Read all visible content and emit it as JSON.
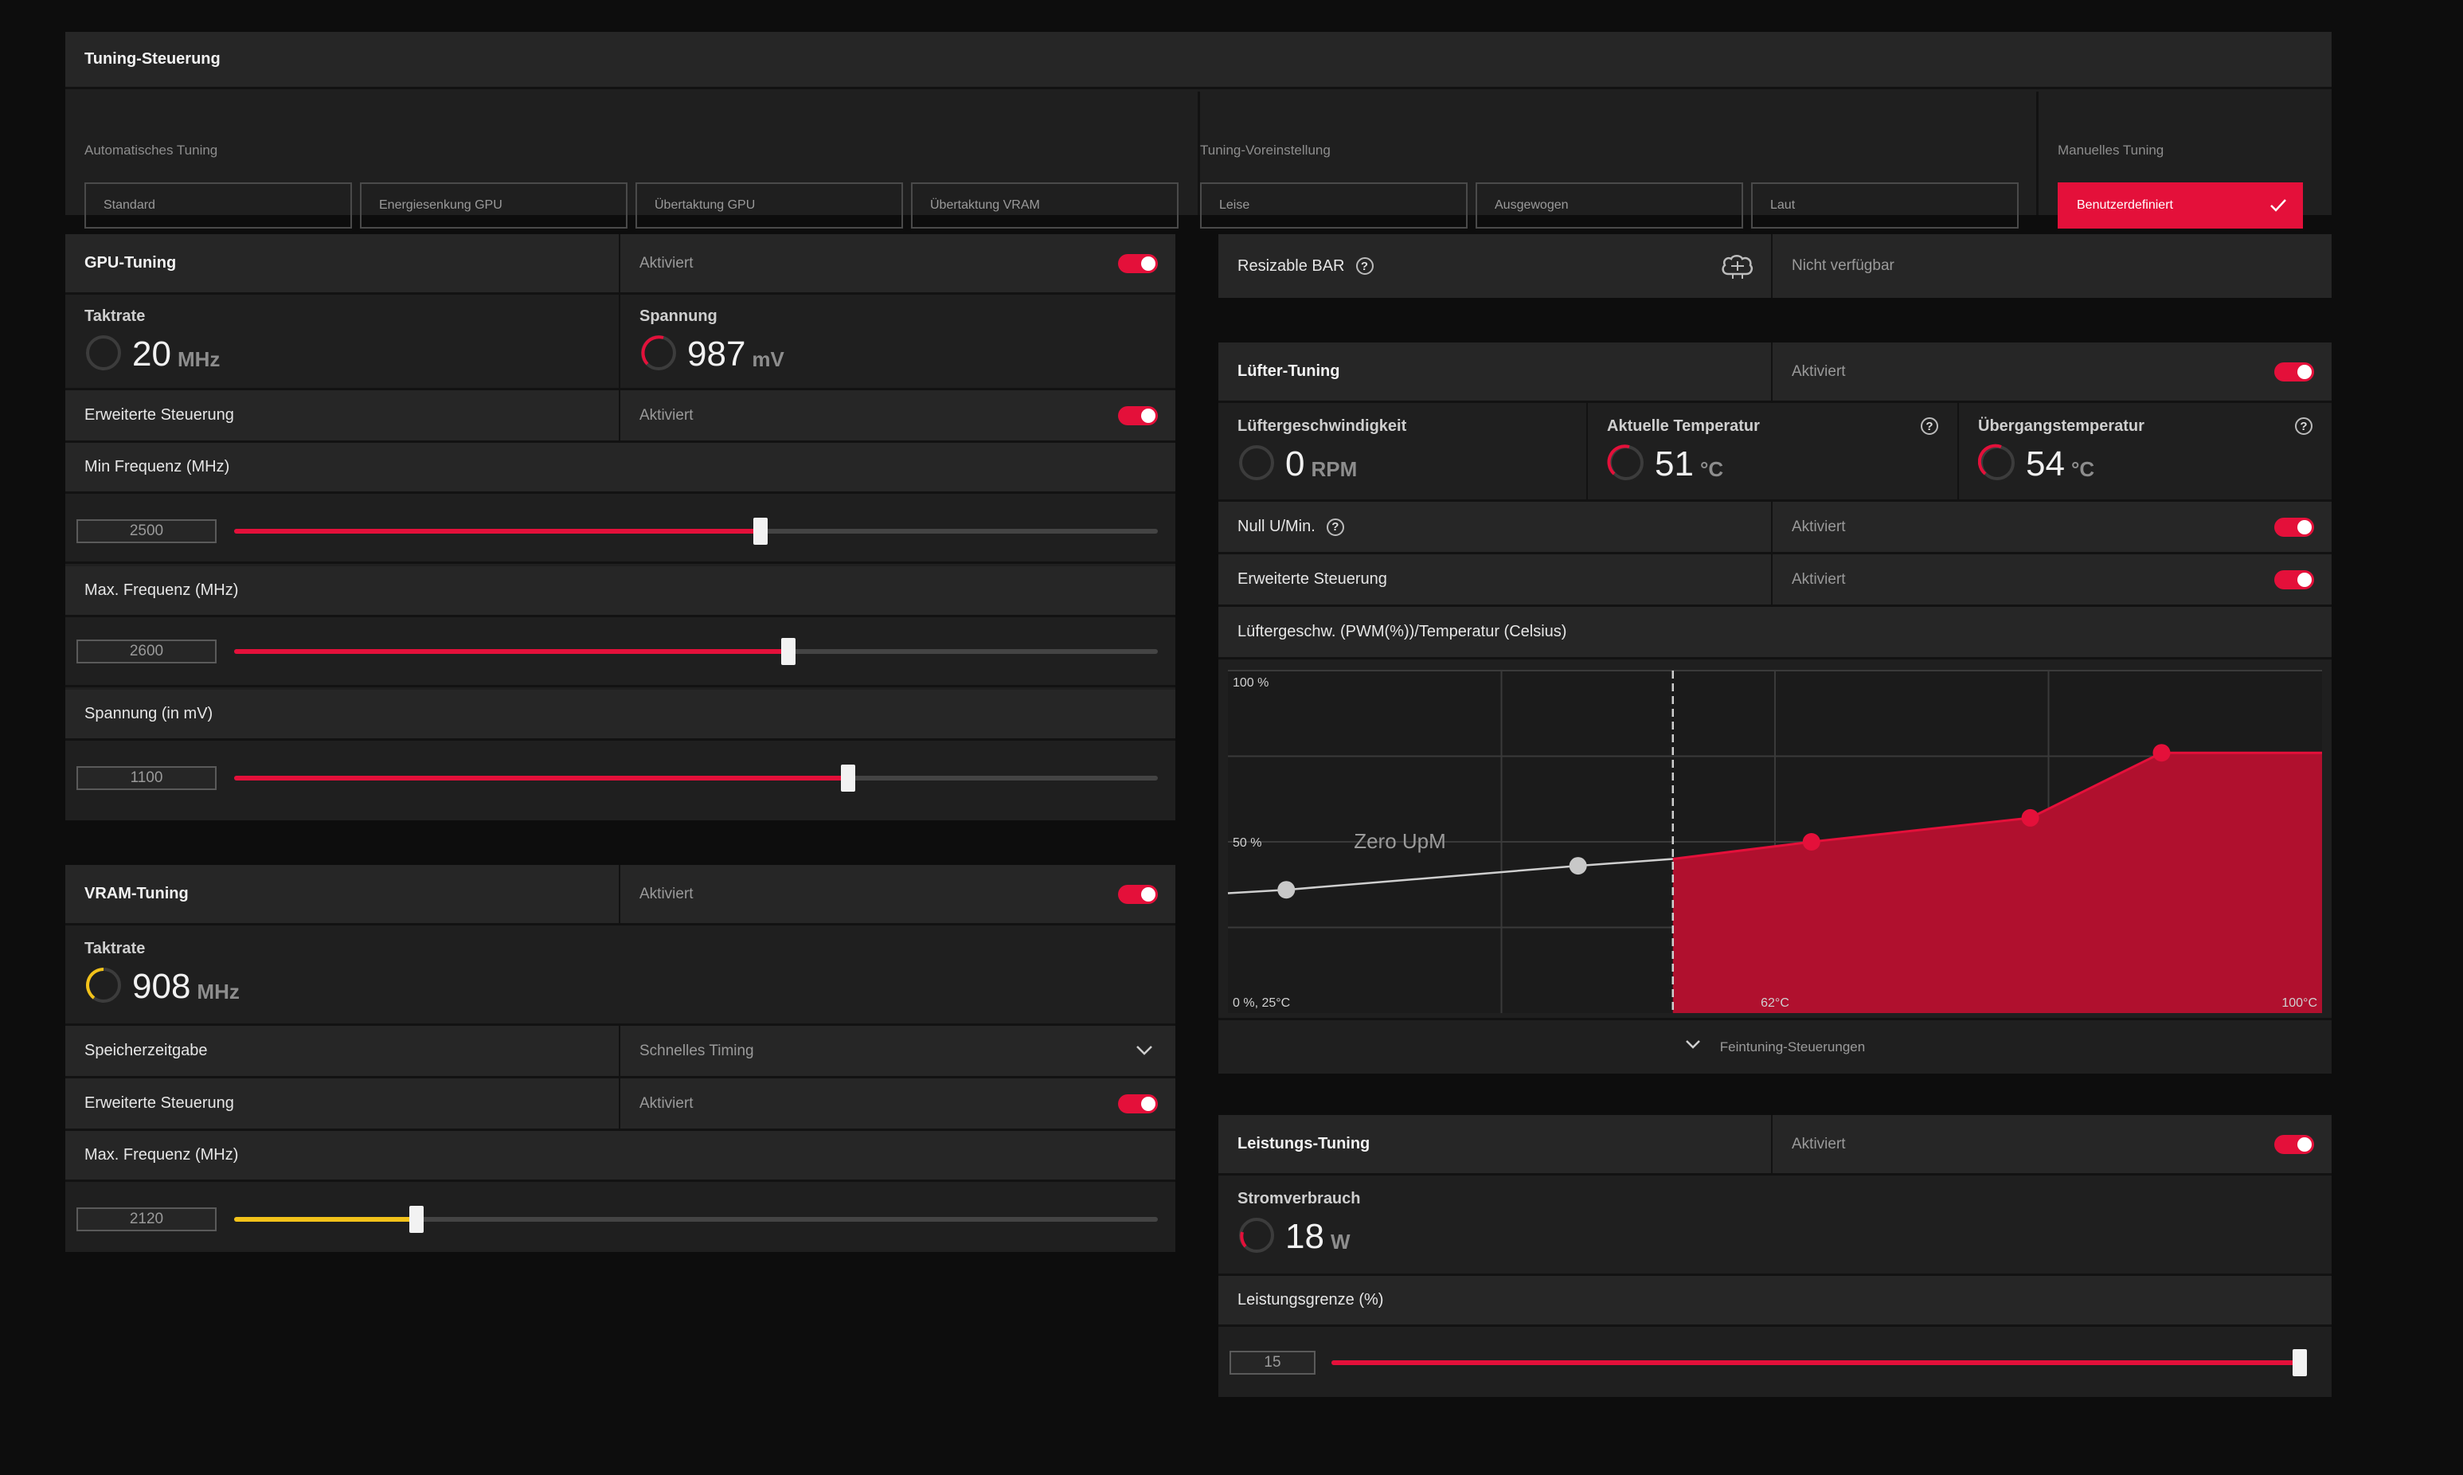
{
  "tuning_control": {
    "title": "Tuning-Steuerung",
    "auto_label": "Automatisches Tuning",
    "auto_buttons": [
      "Standard",
      "Energiesenkung GPU",
      "Übertaktung GPU",
      "Übertaktung VRAM"
    ],
    "preset_label": "Tuning-Voreinstellung",
    "preset_buttons": [
      "Leise",
      "Ausgewogen",
      "Laut"
    ],
    "manual_label": "Manuelles Tuning",
    "manual_button": "Benutzerdefiniert"
  },
  "gpu_tuning": {
    "title": "GPU-Tuning",
    "status": "Aktiviert",
    "clock_label": "Taktrate",
    "clock_value": "20",
    "clock_unit": "MHz",
    "voltage_label": "Spannung",
    "voltage_value": "987",
    "voltage_unit": "mV",
    "advanced_label": "Erweiterte Steuerung",
    "advanced_status": "Aktiviert",
    "min_freq_label": "Min Frequenz (MHz)",
    "min_freq_value": "2500",
    "min_freq_fraction": 0.57,
    "max_freq_label": "Max. Frequenz (MHz)",
    "max_freq_value": "2600",
    "max_freq_fraction": 0.6,
    "voltage_slider_label": "Spannung (in mV)",
    "voltage_slider_value": "1100",
    "voltage_slider_fraction": 0.665
  },
  "vram_tuning": {
    "title": "VRAM-Tuning",
    "status": "Aktiviert",
    "clock_label": "Taktrate",
    "clock_value": "908",
    "clock_unit": "MHz",
    "timing_label": "Speicherzeitgabe",
    "timing_value": "Schnelles Timing",
    "advanced_label": "Erweiterte Steuerung",
    "advanced_status": "Aktiviert",
    "max_freq_label": "Max. Frequenz (MHz)",
    "max_freq_value": "2120",
    "max_freq_fraction": 0.197
  },
  "resizable_bar": {
    "label": "Resizable BAR",
    "status": "Nicht verfügbar"
  },
  "fan_tuning": {
    "title": "Lüfter-Tuning",
    "status": "Aktiviert",
    "speed_label": "Lüftergeschwindigkeit",
    "speed_value": "0",
    "speed_unit": "RPM",
    "temp_label": "Aktuelle Temperatur",
    "temp_value": "51",
    "temp_unit": "°C",
    "junction_label": "Übergangstemperatur",
    "junction_value": "54",
    "junction_unit": "°C",
    "zero_rpm_label": "Null U/Min.",
    "zero_rpm_status": "Aktiviert",
    "advanced_label": "Erweiterte Steuerung",
    "advanced_status": "Aktiviert",
    "curve_label": "Lüftergeschw. (PWM(%))/Temperatur (Celsius)",
    "fine_tuning_label": "Feintuning-Steuerungen"
  },
  "chart_data": {
    "type": "line",
    "y_top_label": "100 %",
    "y_mid_label": "50 %",
    "origin_label": "0 %, 25°C",
    "x_mid_label": "62°C",
    "x_max_label": "100°C",
    "zero_rpm_label": "Zero UpM",
    "xlim": [
      25,
      100
    ],
    "ylim": [
      0,
      100
    ],
    "zero_rpm_threshold": 55.5,
    "series": [
      {
        "values": [
          [
            29,
            36
          ],
          [
            49,
            43
          ],
          [
            55.5,
            45
          ],
          [
            65,
            50
          ],
          [
            80,
            57
          ],
          [
            89,
            76
          ],
          [
            100,
            76
          ]
        ]
      }
    ],
    "points_inactive": [
      [
        29,
        36
      ],
      [
        49,
        43
      ]
    ],
    "points_active": [
      [
        65,
        50
      ],
      [
        80,
        57
      ],
      [
        89,
        76
      ]
    ],
    "grid": true
  },
  "power_tuning": {
    "title": "Leistungs-Tuning",
    "status": "Aktiviert",
    "power_label": "Stromverbrauch",
    "power_value": "18",
    "power_unit": "W",
    "limit_label": "Leistungsgrenze (%)",
    "limit_value": "15",
    "limit_fraction": 0.995
  },
  "colors": {
    "accent": "#e4103a",
    "vram_accent": "#f2c21a",
    "panel": "#1f1f1f",
    "header": "#262626"
  }
}
